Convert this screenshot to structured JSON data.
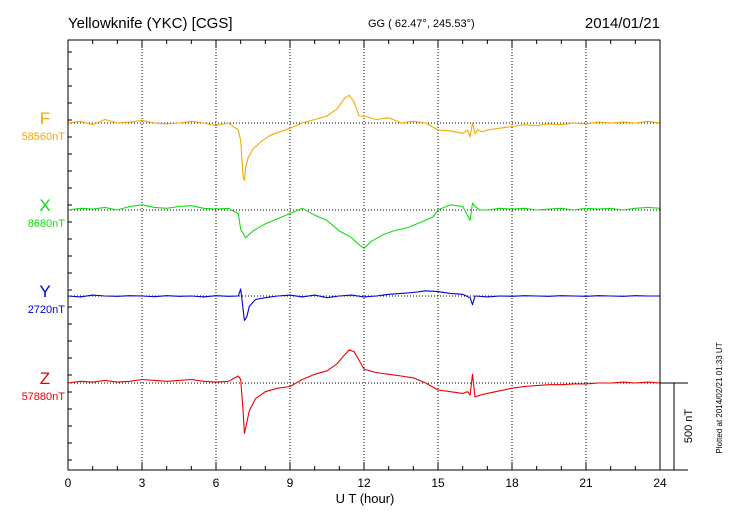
{
  "header": {
    "station": "Yellowknife (YKC)  [CGS]",
    "coords": "GG ( 62.47°, 245.53°)",
    "date": "2014/01/21"
  },
  "footer": {
    "xlabel": "U T (hour)",
    "plotted_note": "Plotted at 2014/02/21 01:33 UT",
    "scale_label": "500 nT"
  },
  "chart_data": {
    "type": "line",
    "title": "Yellowknife (YKC)  [CGS]",
    "xlabel": "U T (hour)",
    "xlim": [
      0,
      24
    ],
    "x_ticks": [
      0,
      3,
      6,
      9,
      12,
      15,
      18,
      21,
      24
    ],
    "grid": true,
    "scale_bar_nT": 500,
    "series": [
      {
        "name": "F",
        "baseline_label": "58560nT",
        "color": "#f5a800",
        "baseline": 58560,
        "x": [
          0,
          0.5,
          1,
          1.5,
          2,
          2.5,
          3,
          3.5,
          4,
          4.5,
          5,
          5.5,
          6,
          6.5,
          6.9,
          7.0,
          7.1,
          7.15,
          7.2,
          7.3,
          7.5,
          7.8,
          8.2,
          8.6,
          9.0,
          9.5,
          10.0,
          10.5,
          10.9,
          11.2,
          11.4,
          11.6,
          11.8,
          12.0,
          12.5,
          13.0,
          13.5,
          14.0,
          14.5,
          15.0,
          15.5,
          16.0,
          16.2,
          16.3,
          16.4,
          16.5,
          16.6,
          16.8,
          17.0,
          17.5,
          18.0,
          18.5,
          19.0,
          19.5,
          20.0,
          20.5,
          21.0,
          21.5,
          22.0,
          22.5,
          23.0,
          23.5,
          24.0
        ],
        "y": [
          58560,
          58570,
          58550,
          58580,
          58560,
          58565,
          58575,
          58560,
          58555,
          58560,
          58570,
          58560,
          58545,
          58560,
          58520,
          58460,
          58250,
          58230,
          58300,
          58360,
          58410,
          58450,
          58490,
          58510,
          58530,
          58560,
          58580,
          58600,
          58640,
          58700,
          58720,
          58680,
          58600,
          58600,
          58580,
          58590,
          58560,
          58570,
          58560,
          58520,
          58515,
          58500,
          58520,
          58480,
          58560,
          58500,
          58520,
          58510,
          58520,
          58530,
          58540,
          58550,
          58545,
          58555,
          58550,
          58560,
          58555,
          58565,
          58560,
          58565,
          58560,
          58570,
          58560
        ]
      },
      {
        "name": "X",
        "baseline_label": "8680nT",
        "color": "#11dd11",
        "baseline": 8680,
        "x": [
          0,
          0.5,
          1,
          1.5,
          2,
          2.5,
          3,
          3.5,
          4,
          4.5,
          5,
          5.5,
          6,
          6.5,
          6.9,
          7.0,
          7.2,
          7.5,
          8.0,
          8.5,
          9.0,
          9.5,
          10.0,
          10.5,
          11.0,
          11.5,
          11.8,
          12.0,
          12.3,
          12.8,
          13.2,
          13.8,
          14.3,
          14.8,
          15.0,
          15.5,
          16.0,
          16.3,
          16.4,
          16.5,
          16.7,
          17.0,
          17.5,
          18.0,
          18.5,
          19.0,
          19.5,
          20.0,
          20.5,
          21.0,
          21.5,
          22.0,
          22.5,
          23.0,
          23.5,
          24.0
        ],
        "y": [
          8680,
          8690,
          8685,
          8695,
          8680,
          8700,
          8710,
          8695,
          8690,
          8700,
          8705,
          8690,
          8685,
          8690,
          8660,
          8570,
          8520,
          8560,
          8600,
          8630,
          8660,
          8690,
          8650,
          8620,
          8560,
          8520,
          8480,
          8460,
          8500,
          8540,
          8560,
          8580,
          8610,
          8640,
          8680,
          8710,
          8700,
          8620,
          8720,
          8700,
          8680,
          8680,
          8690,
          8685,
          8690,
          8680,
          8685,
          8690,
          8680,
          8690,
          8685,
          8690,
          8680,
          8690,
          8695,
          8690
        ]
      },
      {
        "name": "Y",
        "baseline_label": "2720nT",
        "color": "#0000dd",
        "baseline": 2720,
        "x": [
          0,
          0.5,
          1,
          1.5,
          2,
          2.5,
          3,
          3.5,
          4,
          4.5,
          5,
          5.5,
          6,
          6.5,
          6.9,
          7.0,
          7.15,
          7.25,
          7.35,
          7.6,
          8.0,
          8.5,
          9.0,
          9.5,
          10.0,
          10.5,
          11.0,
          11.5,
          12.0,
          12.5,
          13.0,
          13.5,
          14.0,
          14.5,
          15.0,
          15.5,
          16.0,
          16.3,
          16.4,
          16.5,
          17.0,
          17.5,
          18.0,
          18.5,
          19.0,
          19.5,
          20.0,
          20.5,
          21.0,
          21.5,
          22.0,
          22.5,
          23.0,
          23.5,
          24.0
        ],
        "y": [
          2720,
          2715,
          2725,
          2720,
          2718,
          2722,
          2720,
          2716,
          2722,
          2718,
          2720,
          2715,
          2722,
          2718,
          2720,
          2760,
          2580,
          2600,
          2660,
          2700,
          2710,
          2720,
          2725,
          2715,
          2725,
          2710,
          2720,
          2725,
          2715,
          2720,
          2730,
          2735,
          2740,
          2750,
          2745,
          2735,
          2730,
          2710,
          2670,
          2720,
          2715,
          2720,
          2718,
          2722,
          2720,
          2718,
          2722,
          2720,
          2718,
          2722,
          2720,
          2718,
          2722,
          2720,
          2720
        ]
      },
      {
        "name": "Z",
        "baseline_label": "57880nT",
        "color": "#ee0000",
        "baseline": 57880,
        "x": [
          0,
          0.5,
          1,
          1.5,
          2,
          2.5,
          3,
          3.5,
          4,
          4.5,
          5,
          5.5,
          6,
          6.5,
          6.9,
          7.0,
          7.1,
          7.15,
          7.2,
          7.35,
          7.6,
          8.0,
          8.5,
          9.0,
          9.5,
          10.0,
          10.5,
          10.9,
          11.2,
          11.4,
          11.6,
          11.8,
          12.0,
          12.5,
          13.0,
          13.5,
          14.0,
          14.5,
          15.0,
          15.5,
          16.0,
          16.2,
          16.3,
          16.4,
          16.5,
          16.7,
          17.0,
          17.5,
          18.0,
          18.5,
          19.0,
          19.5,
          20.0,
          20.5,
          21.0,
          21.5,
          22.0,
          22.5,
          23.0,
          23.5,
          24.0
        ],
        "y": [
          57880,
          57890,
          57885,
          57895,
          57885,
          57890,
          57900,
          57895,
          57890,
          57895,
          57900,
          57890,
          57885,
          57890,
          57920,
          57900,
          57720,
          57590,
          57620,
          57720,
          57790,
          57830,
          57850,
          57860,
          57900,
          57930,
          57950,
          57990,
          58040,
          58070,
          58060,
          58010,
          57960,
          57940,
          57930,
          57920,
          57910,
          57880,
          57840,
          57830,
          57820,
          57830,
          57810,
          57930,
          57800,
          57810,
          57820,
          57835,
          57850,
          57860,
          57865,
          57870,
          57870,
          57875,
          57875,
          57880,
          57880,
          57885,
          57880,
          57885,
          57880
        ]
      }
    ]
  }
}
